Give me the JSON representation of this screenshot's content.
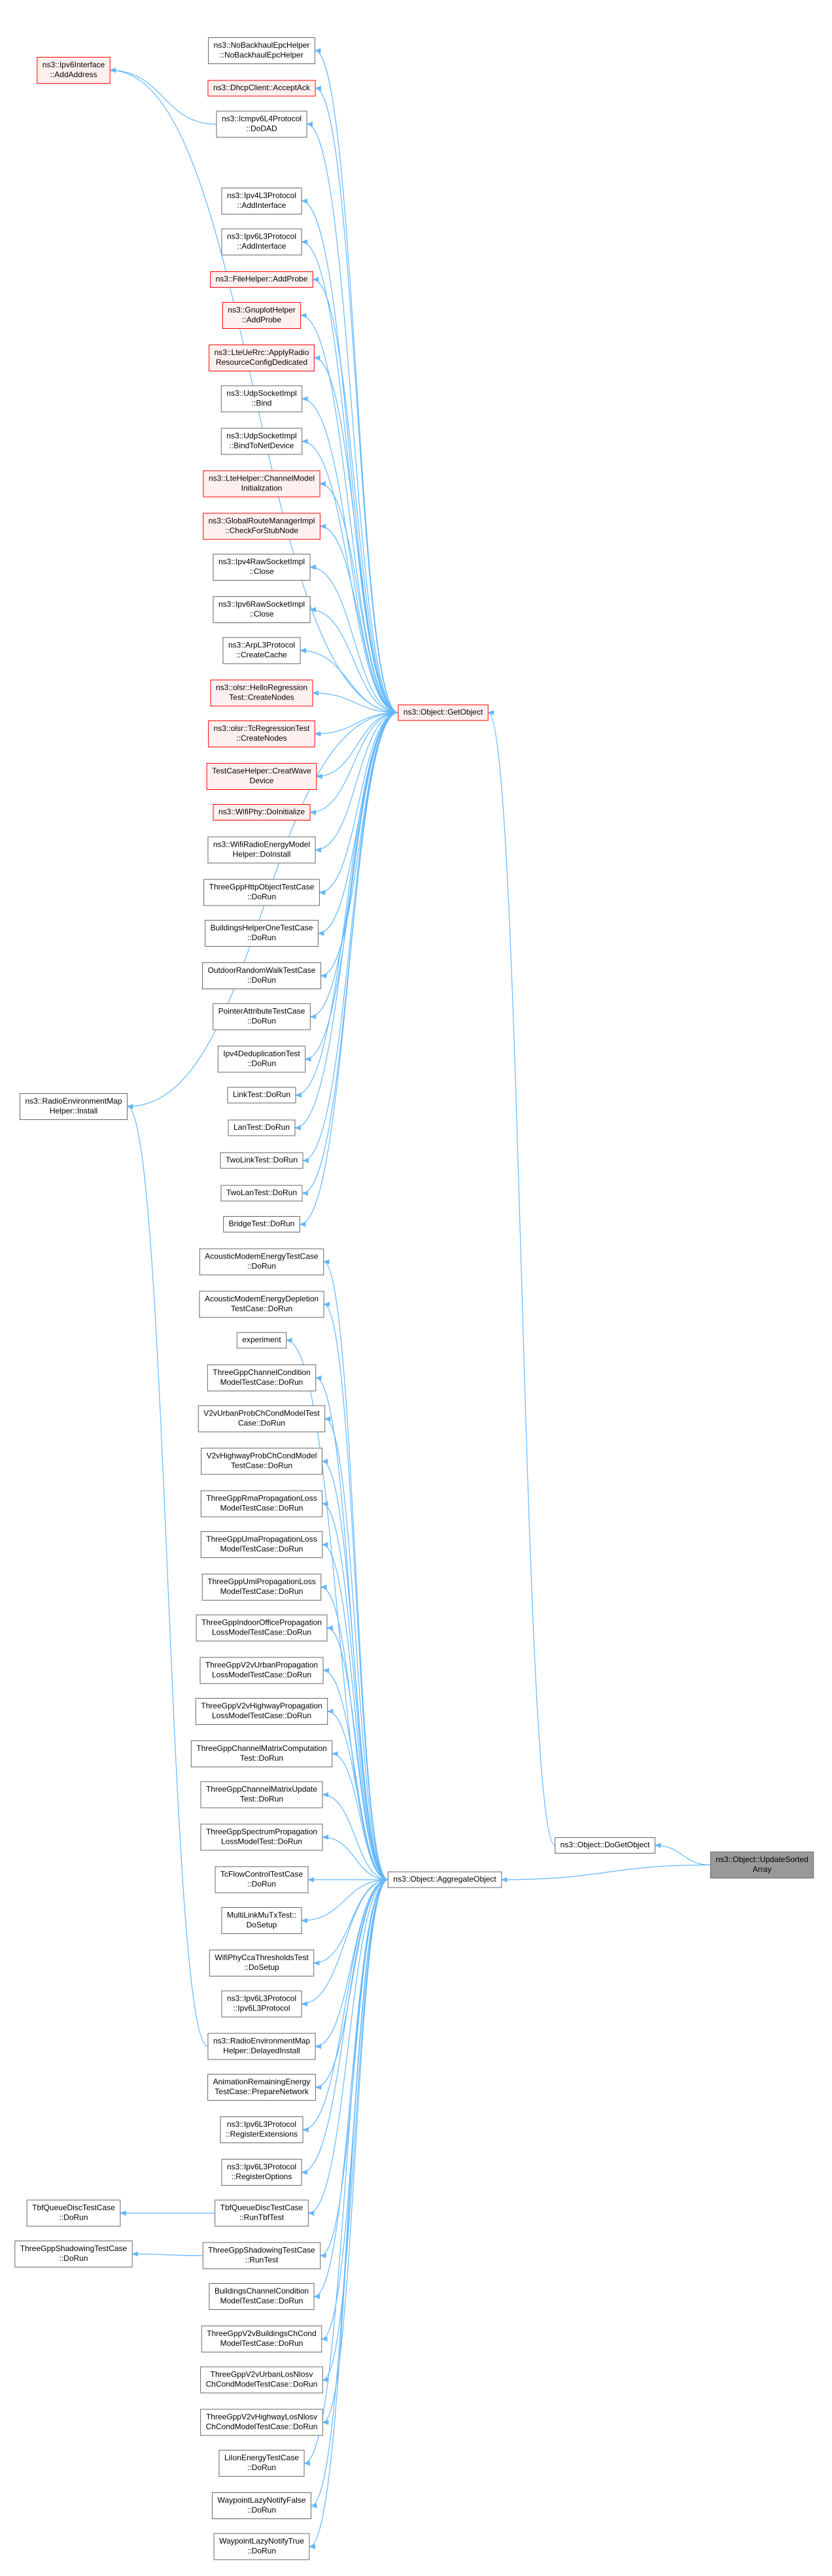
{
  "nodes": [
    {
      "label": [
        "ns3::Ipv6Interface",
        "::AddAddress"
      ],
      "border": "#ff0000"
    },
    {
      "label": [
        "ns3::RadioEnvironmentMap",
        "Helper::Install"
      ]
    },
    {
      "label": [
        "TbfQueueDiscTestCase",
        "::DoRun"
      ]
    },
    {
      "label": [
        "ThreeGppShadowingTestCase",
        "::DoRun"
      ]
    },
    {
      "label": [
        "ns3::NoBackhaulEpcHelper",
        "::NoBackhaulEpcHelper"
      ]
    },
    {
      "label": [
        "ns3::DhcpClient::AcceptAck"
      ],
      "border": "#ff0000"
    },
    {
      "label": [
        "ns3::Icmpv6L4Protocol",
        "::DoDAD"
      ]
    },
    {
      "label": [
        "ns3::Ipv4L3Protocol",
        "::AddInterface"
      ]
    },
    {
      "label": [
        "ns3::Ipv6L3Protocol",
        "::AddInterface"
      ]
    },
    {
      "label": [
        "ns3::FileHelper::AddProbe"
      ],
      "border": "#ff0000"
    },
    {
      "label": [
        "ns3::GnuplotHelper",
        "::AddProbe"
      ],
      "border": "#ff0000"
    },
    {
      "label": [
        "ns3::LteUeRrc::ApplyRadio",
        "ResourceConfigDedicated"
      ],
      "border": "#ff0000"
    },
    {
      "label": [
        "ns3::UdpSocketImpl",
        "::Bind"
      ]
    },
    {
      "label": [
        "ns3::UdpSocketImpl",
        "::BindToNetDevice"
      ]
    },
    {
      "label": [
        "ns3::LteHelper::ChannelModel",
        "Initialization"
      ],
      "border": "#ff0000"
    },
    {
      "label": [
        "ns3::GlobalRouteManagerImpl",
        "::CheckForStubNode"
      ],
      "border": "#ff0000"
    },
    {
      "label": [
        "ns3::Ipv4RawSocketImpl",
        "::Close"
      ]
    },
    {
      "label": [
        "ns3::Ipv6RawSocketImpl",
        "::Close"
      ]
    },
    {
      "label": [
        "ns3::ArpL3Protocol",
        "::CreateCache"
      ]
    },
    {
      "label": [
        "ns3::olsr::HelloRegression",
        "Test::CreateNodes"
      ],
      "border": "#ff0000"
    },
    {
      "label": [
        "ns3::olsr::TcRegressionTest",
        "::CreateNodes"
      ],
      "border": "#ff0000"
    },
    {
      "label": [
        "TestCaseHelper::CreatWave",
        "Device"
      ],
      "border": "#ff0000"
    },
    {
      "label": [
        "ns3::WifiPhy::DoInitialize"
      ],
      "border": "#ff0000"
    },
    {
      "label": [
        "ns3::WifiRadioEnergyModel",
        "Helper::DoInstall"
      ]
    },
    {
      "label": [
        "ThreeGppHttpObjectTestCase",
        "::DoRun"
      ]
    },
    {
      "label": [
        "BuildingsHelperOneTestCase",
        "::DoRun"
      ]
    },
    {
      "label": [
        "OutdoorRandomWalkTestCase",
        "::DoRun"
      ]
    },
    {
      "label": [
        "PointerAttributeTestCase",
        "::DoRun"
      ]
    },
    {
      "label": [
        "Ipv4DeduplicationTest",
        "::DoRun"
      ]
    },
    {
      "label": [
        "LinkTest::DoRun"
      ]
    },
    {
      "label": [
        "LanTest::DoRun"
      ]
    },
    {
      "label": [
        "TwoLinkTest::DoRun"
      ]
    },
    {
      "label": [
        "TwoLanTest::DoRun"
      ]
    },
    {
      "label": [
        "BridgeTest::DoRun"
      ]
    },
    {
      "label": [
        "AcousticModemEnergyTestCase",
        "::DoRun"
      ]
    },
    {
      "label": [
        "AcousticModemEnergyDepletion",
        "TestCase::DoRun"
      ]
    },
    {
      "label": [
        "experiment"
      ]
    },
    {
      "label": [
        "ThreeGppChannelCondition",
        "ModelTestCase::DoRun"
      ]
    },
    {
      "label": [
        "V2vUrbanProbChCondModelTest",
        "Case::DoRun"
      ]
    },
    {
      "label": [
        "V2vHighwayProbChCondModel",
        "TestCase::DoRun"
      ]
    },
    {
      "label": [
        "ThreeGppRmaPropagationLoss",
        "ModelTestCase::DoRun"
      ]
    },
    {
      "label": [
        "ThreeGppUmaPropagationLoss",
        "ModelTestCase::DoRun"
      ]
    },
    {
      "label": [
        "ThreeGppUmiPropagationLoss",
        "ModelTestCase::DoRun"
      ]
    },
    {
      "label": [
        "ThreeGppIndoorOfficePropagation",
        "LossModelTestCase::DoRun"
      ]
    },
    {
      "label": [
        "ThreeGppV2vUrbanPropagation",
        "LossModelTestCase::DoRun"
      ]
    },
    {
      "label": [
        "ThreeGppV2vHighwayPropagation",
        "LossModelTestCase::DoRun"
      ]
    },
    {
      "label": [
        "ThreeGppChannelMatrixComputation",
        "Test::DoRun"
      ]
    },
    {
      "label": [
        "ThreeGppChannelMatrixUpdate",
        "Test::DoRun"
      ]
    },
    {
      "label": [
        "ThreeGppSpectrumPropagation",
        "LossModelTest::DoRun"
      ]
    },
    {
      "label": [
        "TcFlowControlTestCase",
        "::DoRun"
      ]
    },
    {
      "label": [
        "MultiLinkMuTxTest::",
        "DoSetup"
      ]
    },
    {
      "label": [
        "WifiPhyCcaThresholdsTest",
        "::DoSetup"
      ]
    },
    {
      "label": [
        "ns3::Ipv6L3Protocol",
        "::Ipv6L3Protocol"
      ]
    },
    {
      "label": [
        "ns3::RadioEnvironmentMap",
        "Helper::DelayedInstall"
      ]
    },
    {
      "label": [
        "AnimationRemainingEnergy",
        "TestCase::PrepareNetwork"
      ]
    },
    {
      "label": [
        "ns3::Ipv6L3Protocol",
        "::RegisterExtensions"
      ]
    },
    {
      "label": [
        "ns3::Ipv6L3Protocol",
        "::RegisterOptions"
      ]
    },
    {
      "label": [
        "TbfQueueDiscTestCase",
        "::RunTbfTest"
      ]
    },
    {
      "label": [
        "ThreeGppShadowingTestCase",
        "::RunTest"
      ]
    },
    {
      "label": [
        "BuildingsChannelCondition",
        "ModelTestCase::DoRun"
      ]
    },
    {
      "label": [
        "ThreeGppV2vBuildingsChCond",
        "ModelTestCase::DoRun"
      ]
    },
    {
      "label": [
        "ThreeGppV2vUrbanLosNlosv",
        "ChCondModelTestCase::DoRun"
      ]
    },
    {
      "label": [
        "ThreeGppV2vHighwayLosNlosv",
        "ChCondModelTestCase::DoRun"
      ]
    },
    {
      "label": [
        "LiIonEnergyTestCase",
        "::DoRun"
      ]
    },
    {
      "label": [
        "WaypointLazyNotifyFalse",
        "::DoRun"
      ]
    },
    {
      "label": [
        "WaypointLazyNotifyTrue",
        "::DoRun"
      ]
    },
    {
      "label": [
        "ns3::Object::GetObject"
      ],
      "border": "#ff0000"
    },
    {
      "label": [
        "ns3::Object::AggregateObject"
      ]
    },
    {
      "label": [
        "ns3::Object::DoGetObject"
      ]
    },
    {
      "label": [
        "ns3::Object::UpdateSorted",
        "Array"
      ],
      "fill": "#999999"
    }
  ]
}
